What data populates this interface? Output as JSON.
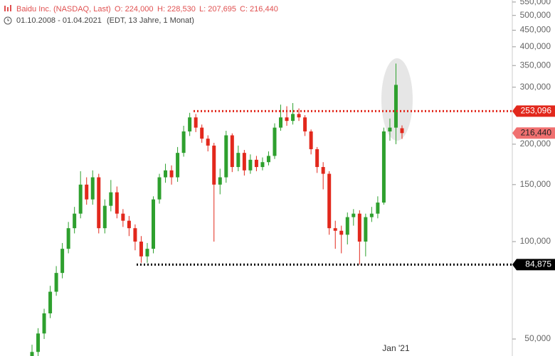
{
  "header": {
    "title": "Baidu Inc. (NASDAQ, Last)",
    "ohlc": [
      "O: 224,000",
      "H: 228,530",
      "L: 207,695",
      "C: 216,440"
    ],
    "range": "01.10.2008 - 01.04.2021",
    "zone": "(EDT, 13 Jahre, 1 Monat)"
  },
  "chart_data": {
    "type": "candlestick",
    "log_scale": true,
    "up_color": "#2ea02e",
    "down_color": "#e2281c",
    "categories": [
      null,
      null,
      null,
      null,
      null,
      null,
      null,
      null,
      null,
      null,
      null,
      null,
      null,
      null,
      null,
      null,
      null,
      null,
      null,
      null,
      null,
      null,
      null,
      null,
      null,
      null,
      null,
      null,
      null,
      null,
      null,
      null,
      null,
      null,
      null,
      null,
      null,
      null,
      null,
      null,
      null,
      null,
      null,
      null,
      null,
      null,
      null,
      null,
      null,
      null,
      null,
      null,
      null,
      null,
      null,
      null,
      null,
      null,
      null,
      null,
      "Jan '21",
      null
    ],
    "open": [
      43000,
      45600,
      52000,
      60000,
      70000,
      80000,
      95000,
      110000,
      122000,
      150000,
      135000,
      158000,
      110000,
      129000,
      142000,
      122000,
      116000,
      110000,
      100000,
      90000,
      95000,
      135000,
      158000,
      166000,
      158000,
      188000,
      219000,
      242000,
      225000,
      208000,
      198000,
      150000,
      158000,
      213000,
      170000,
      188000,
      166000,
      179000,
      170000,
      176000,
      184000,
      225000,
      242000,
      236000,
      248000,
      242000,
      219000,
      193000,
      170000,
      162000,
      110000,
      108000,
      105000,
      119000,
      122000,
      100000,
      119000,
      122000,
      132000,
      219000,
      225000,
      224000
    ],
    "high": [
      48000,
      54000,
      62000,
      73000,
      84000,
      99000,
      115000,
      128000,
      165000,
      158000,
      166000,
      162000,
      135000,
      155000,
      148000,
      126000,
      120000,
      113000,
      104000,
      99000,
      138000,
      162000,
      174000,
      172000,
      196000,
      228000,
      250000,
      248000,
      230000,
      213000,
      202000,
      168000,
      220000,
      216000,
      198000,
      192000,
      186000,
      184000,
      182000,
      190000,
      232000,
      265000,
      262000,
      268000,
      258000,
      246000,
      222000,
      196000,
      176000,
      165000,
      116000,
      112000,
      123000,
      126000,
      125000,
      122000,
      128000,
      138000,
      225000,
      240000,
      355000,
      228530
    ],
    "low": [
      41000,
      44000,
      50000,
      58000,
      68000,
      77000,
      92000,
      106000,
      118000,
      130000,
      130000,
      106000,
      106000,
      124000,
      118000,
      111000,
      104000,
      94000,
      86000,
      86000,
      92000,
      131000,
      152000,
      150000,
      153000,
      183000,
      212000,
      218000,
      202000,
      190000,
      100000,
      140000,
      152000,
      164000,
      165000,
      160000,
      162000,
      165000,
      166000,
      172000,
      180000,
      220000,
      228000,
      230000,
      236000,
      212000,
      186000,
      163000,
      145000,
      105000,
      95000,
      92000,
      98000,
      112000,
      84875,
      90000,
      115000,
      118000,
      130000,
      205000,
      200000,
      207695
    ],
    "close": [
      45600,
      52000,
      60000,
      70000,
      80000,
      95000,
      110000,
      122000,
      150000,
      135000,
      158000,
      110000,
      129000,
      142000,
      122000,
      116000,
      110000,
      100000,
      90000,
      95000,
      135000,
      158000,
      166000,
      158000,
      188000,
      219000,
      242000,
      225000,
      208000,
      198000,
      150000,
      158000,
      213000,
      170000,
      188000,
      166000,
      179000,
      170000,
      176000,
      184000,
      225000,
      242000,
      236000,
      248000,
      242000,
      219000,
      193000,
      170000,
      162000,
      110000,
      108000,
      105000,
      119000,
      122000,
      100000,
      119000,
      122000,
      132000,
      219000,
      225000,
      305000,
      216440
    ],
    "last_price_label": "216,440",
    "last_price_color": "#f07070",
    "levels": [
      {
        "value": 253096,
        "label": "253,096",
        "color": "#e2281c"
      },
      {
        "value": 84875,
        "label": "84,875",
        "color": "#000000"
      }
    ],
    "ylim": [
      44300,
      558000
    ],
    "yticks": [
      {
        "value": 50000,
        "label": "50,000"
      },
      {
        "value": 100000,
        "label": "100,000"
      },
      {
        "value": 150000,
        "label": "150,000"
      },
      {
        "value": 200000,
        "label": "200,000"
      },
      {
        "value": 300000,
        "label": "300,000"
      },
      {
        "value": 350000,
        "label": "350,000"
      },
      {
        "value": 400000,
        "label": "400,000"
      },
      {
        "value": 450000,
        "label": "450,000"
      },
      {
        "value": 500000,
        "label": "500,000"
      },
      {
        "value": 550000,
        "label": "550,000"
      }
    ]
  }
}
